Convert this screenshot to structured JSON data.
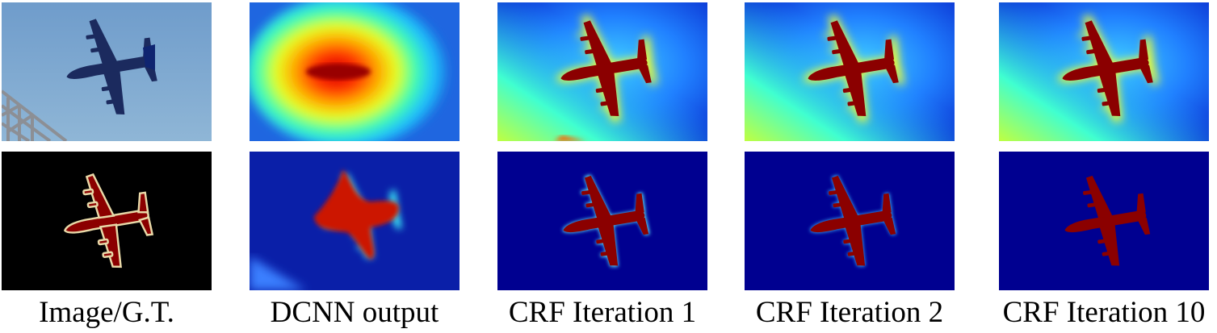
{
  "figure": {
    "columns": [
      {
        "caption": "Image/G.T."
      },
      {
        "caption": "DCNN output"
      },
      {
        "caption": "CRF Iteration 1"
      },
      {
        "caption": "CRF Iteration 2"
      },
      {
        "caption": "CRF Iteration 10"
      }
    ]
  },
  "colors": {
    "jet_dark_blue": "#00008f",
    "jet_red": "#800000",
    "sky": "#7fa8cc",
    "gt_plane": "#800000",
    "gt_outline": "#e8d9a8"
  }
}
